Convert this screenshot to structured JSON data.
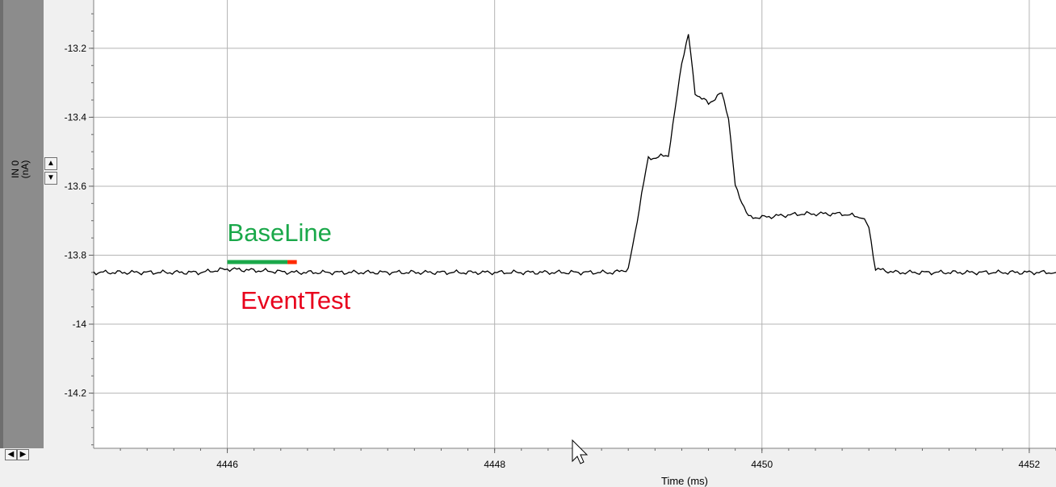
{
  "chart_data": {
    "type": "line",
    "title": "",
    "xlabel": "Time (ms)",
    "ylabel": {
      "channel": "IN 0",
      "unit": "(nA)"
    },
    "xlim": [
      4445.0,
      4452.2
    ],
    "ylim": [
      -14.36,
      -13.06
    ],
    "x_ticks": [
      {
        "value": 4446,
        "label": "4446"
      },
      {
        "value": 4448,
        "label": "4448"
      },
      {
        "value": 4450,
        "label": "4450"
      },
      {
        "value": 4452,
        "label": "4452"
      }
    ],
    "y_ticks": [
      {
        "value": -13.2,
        "label": "-13.2"
      },
      {
        "value": -13.4,
        "label": "-13.4"
      },
      {
        "value": -13.6,
        "label": "-13.6"
      },
      {
        "value": -13.8,
        "label": "-13.8"
      },
      {
        "value": -14.0,
        "label": "-14"
      },
      {
        "value": -14.2,
        "label": "-14.2"
      }
    ],
    "grid": true,
    "series": [
      {
        "name": "IN 0",
        "color": "#000000",
        "x": [
          4445.0,
          4445.5,
          4445.8,
          4446.0,
          4446.5,
          4447.0,
          4447.5,
          4448.0,
          4448.5,
          4448.9,
          4449.0,
          4449.05,
          4449.1,
          4449.15,
          4449.3,
          4449.35,
          4449.4,
          4449.45,
          4449.5,
          4449.6,
          4449.7,
          4449.75,
          4449.8,
          4449.9,
          4450.0,
          4450.3,
          4450.6,
          4450.75,
          4450.8,
          4450.85,
          4451.0,
          4451.5,
          4452.0,
          4452.2
        ],
        "y": [
          -13.85,
          -13.85,
          -13.85,
          -13.84,
          -13.85,
          -13.85,
          -13.85,
          -13.85,
          -13.85,
          -13.85,
          -13.84,
          -13.74,
          -13.62,
          -13.52,
          -13.51,
          -13.38,
          -13.24,
          -13.16,
          -13.33,
          -13.36,
          -13.33,
          -13.4,
          -13.6,
          -13.69,
          -13.69,
          -13.68,
          -13.68,
          -13.69,
          -13.72,
          -13.84,
          -13.85,
          -13.85,
          -13.85,
          -13.85
        ]
      }
    ],
    "annotations": [
      {
        "label": "BaseLine",
        "color": "#1aa84a",
        "x_start": 4446.0,
        "x_end": 4446.45,
        "y": -13.82
      },
      {
        "label": "EventTest",
        "color": "#ff2a00",
        "text_color": "#e8001c",
        "x_start": 4446.45,
        "x_end": 4446.52,
        "y": -13.82
      }
    ]
  }
}
